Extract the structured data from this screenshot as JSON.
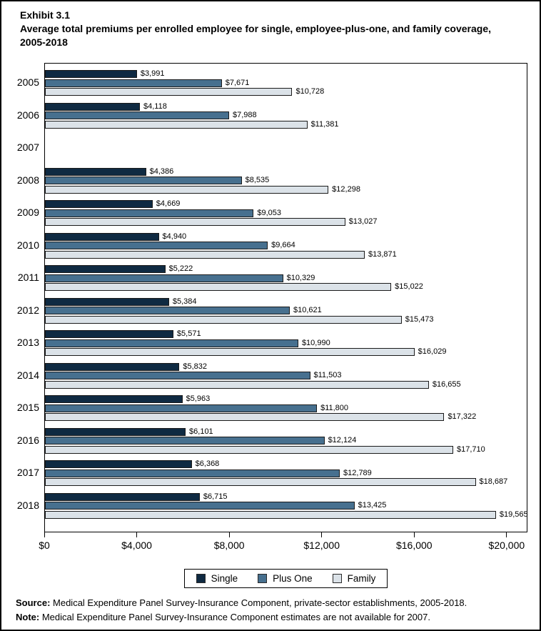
{
  "header": {
    "exhibit_label": "Exhibit 3.1",
    "title": "Average total premiums per enrolled employee for single, employee-plus-one, and family coverage, 2005-2018"
  },
  "footer": {
    "source_label": "Source:",
    "source_text": " Medical Expenditure Panel Survey-Insurance Component, private-sector establishments, 2005-2018.",
    "note_label": "Note:",
    "note_text": " Medical Expenditure Panel Survey-Insurance Component estimates are not available for 2007."
  },
  "chart_data": {
    "type": "bar",
    "orientation": "horizontal",
    "title": "Average total premiums per enrolled employee for single, employee-plus-one, and family coverage, 2005-2018",
    "categories": [
      "2005",
      "2006",
      "2007",
      "2008",
      "2009",
      "2010",
      "2011",
      "2012",
      "2013",
      "2014",
      "2015",
      "2016",
      "2017",
      "2018"
    ],
    "series": [
      {
        "name": "Single",
        "color": "#0f2a42",
        "values": [
          3991,
          4118,
          null,
          4386,
          4669,
          4940,
          5222,
          5384,
          5571,
          5832,
          5963,
          6101,
          6368,
          6715
        ],
        "labels": [
          "$3,991",
          "$4,118",
          null,
          "$4,386",
          "$4,669",
          "$4,940",
          "$5,222",
          "$5,384",
          "$5,571",
          "$5,832",
          "$5,963",
          "$6,101",
          "$6,368",
          "$6,715"
        ]
      },
      {
        "name": "Plus One",
        "color": "#47708f",
        "values": [
          7671,
          7988,
          null,
          8535,
          9053,
          9664,
          10329,
          10621,
          10990,
          11503,
          11800,
          12124,
          12789,
          13425
        ],
        "labels": [
          "$7,671",
          "$7,988",
          null,
          "$8,535",
          "$9,053",
          "$9,664",
          "$10,329",
          "$10,621",
          "$10,990",
          "$11,503",
          "$11,800",
          "$12,124",
          "$12,789",
          "$13,425"
        ]
      },
      {
        "name": "Family",
        "color": "#dbe2e8",
        "values": [
          10728,
          11381,
          null,
          12298,
          13027,
          13871,
          15022,
          15473,
          16029,
          16655,
          17322,
          17710,
          18687,
          19565
        ],
        "labels": [
          "$10,728",
          "$11,381",
          null,
          "$12,298",
          "$13,027",
          "$13,871",
          "$15,022",
          "$15,473",
          "$16,029",
          "$16,655",
          "$17,322",
          "$17,710",
          "$18,687",
          "$19,565"
        ]
      }
    ],
    "x_ticks": [
      {
        "value": 0,
        "label": "$0"
      },
      {
        "value": 4000,
        "label": "$4,000"
      },
      {
        "value": 8000,
        "label": "$8,000"
      },
      {
        "value": 12000,
        "label": "$12,000"
      },
      {
        "value": 16000,
        "label": "$16,000"
      },
      {
        "value": 20000,
        "label": "$20,000"
      }
    ],
    "xlim": [
      0,
      20900
    ],
    "grid": false,
    "legend_position": "bottom",
    "bar_border_color": "#1a1a1a"
  }
}
